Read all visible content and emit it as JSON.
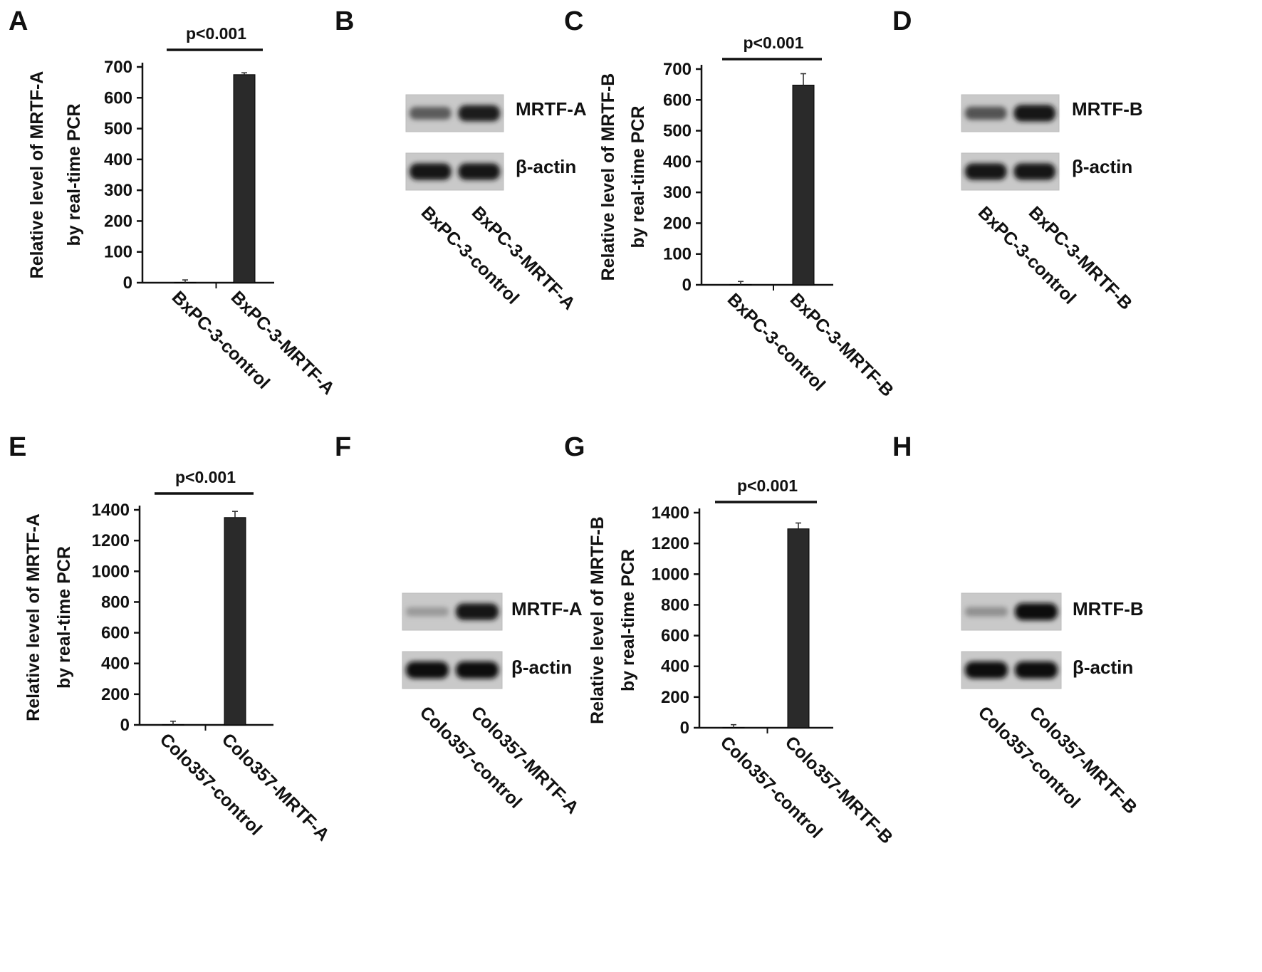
{
  "panels": [
    {
      "letter": "A",
      "chart_data": {
        "type": "bar",
        "categories": [
          "BxPC-3-control",
          "BxPC-3-MRTF-A"
        ],
        "values": [
          1,
          675
        ],
        "errors": [
          8,
          6
        ],
        "ylabel": [
          "Relative level of MRTF-A",
          "by real-time PCR"
        ],
        "ylim": [
          0,
          700
        ],
        "yticks": [
          0,
          100,
          200,
          300,
          400,
          500,
          600,
          700
        ],
        "significance": "p<0.001",
        "bar_color": "#2a2a2a"
      }
    },
    {
      "letter": "B",
      "blot": {
        "target": "MRTF-A",
        "control": "β-actin",
        "samples": [
          "BxPC-3-control",
          "BxPC-3-MRTF-A"
        ],
        "target_intensity": [
          0.55,
          0.9
        ],
        "control_intensity": [
          0.95,
          0.95
        ]
      }
    },
    {
      "letter": "C",
      "chart_data": {
        "type": "bar",
        "categories": [
          "BxPC-3-control",
          "BxPC-3-MRTF-B"
        ],
        "values": [
          1,
          648
        ],
        "errors": [
          10,
          37
        ],
        "ylabel": [
          "Relative level of MRTF-B",
          "by real-time PCR"
        ],
        "ylim": [
          0,
          700
        ],
        "yticks": [
          0,
          100,
          200,
          300,
          400,
          500,
          600,
          700
        ],
        "significance": "p<0.001",
        "bar_color": "#2a2a2a"
      }
    },
    {
      "letter": "D",
      "blot": {
        "target": "MRTF-B",
        "control": "β-actin",
        "samples": [
          "BxPC-3-control",
          "BxPC-3-MRTF-B"
        ],
        "target_intensity": [
          0.6,
          0.95
        ],
        "control_intensity": [
          0.95,
          0.95
        ]
      }
    },
    {
      "letter": "E",
      "chart_data": {
        "type": "bar",
        "categories": [
          "Colo357-control",
          "Colo357-MRTF-A"
        ],
        "values": [
          2,
          1350
        ],
        "errors": [
          22,
          40
        ],
        "ylabel": [
          "Relative level of MRTF-A",
          "by real-time PCR"
        ],
        "ylim": [
          0,
          1400
        ],
        "yticks": [
          0,
          200,
          400,
          600,
          800,
          1000,
          1200,
          1400
        ],
        "significance": "p<0.001",
        "bar_color": "#2a2a2a"
      }
    },
    {
      "letter": "F",
      "blot": {
        "target": "MRTF-A",
        "control": "β-actin",
        "samples": [
          "Colo357-control",
          "Colo357-MRTF-A"
        ],
        "target_intensity": [
          0.2,
          0.95
        ],
        "control_intensity": [
          1.0,
          1.0
        ]
      }
    },
    {
      "letter": "G",
      "chart_data": {
        "type": "bar",
        "categories": [
          "Colo357-control",
          "Colo357-MRTF-B"
        ],
        "values": [
          2,
          1295
        ],
        "errors": [
          18,
          38
        ],
        "ylabel": [
          "Relative level of MRTF-B",
          "by real-time PCR"
        ],
        "ylim": [
          0,
          1400
        ],
        "yticks": [
          0,
          200,
          400,
          600,
          800,
          1000,
          1200,
          1400
        ],
        "significance": "p<0.001",
        "bar_color": "#2a2a2a"
      }
    },
    {
      "letter": "H",
      "blot": {
        "target": "MRTF-B",
        "control": "β-actin",
        "samples": [
          "Colo357-control",
          "Colo357-MRTF-B"
        ],
        "target_intensity": [
          0.25,
          1.0
        ],
        "control_intensity": [
          1.0,
          1.0
        ]
      }
    }
  ]
}
